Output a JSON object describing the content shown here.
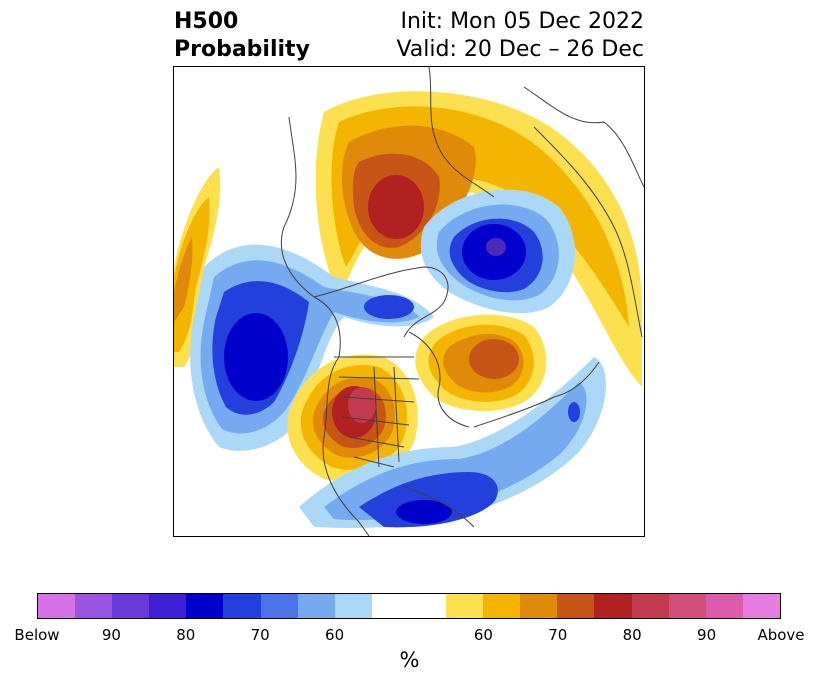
{
  "header": {
    "title_line1": "H500",
    "title_line2": "Probability",
    "init_text": "Init: Mon 05 Dec 2022",
    "valid_text": "Valid: 20 Dec – 26 Dec"
  },
  "colorbar": {
    "colors": [
      "#d672e6",
      "#9a55e0",
      "#6a3ad9",
      "#3e1fd4",
      "#0000cc",
      "#2440dc",
      "#4b72e6",
      "#75aaf0",
      "#acd8f8",
      "#ffffff",
      "#ffffff",
      "#fde050",
      "#f3b500",
      "#e08a0a",
      "#c75515",
      "#b12121",
      "#c13a4e",
      "#d04f7b",
      "#db5cab",
      "#e77de0"
    ],
    "tick_labels": [
      "Below",
      "90",
      "80",
      "70",
      "60",
      "60",
      "70",
      "80",
      "90",
      "Above"
    ],
    "unit_label": "%"
  },
  "map": {
    "blue_shades": [
      "#acd8f8",
      "#75aaf0",
      "#2440dc",
      "#0000cc"
    ],
    "warm_shades": [
      "#fde050",
      "#f3b500",
      "#e08a0a",
      "#c75515",
      "#b12121",
      "#c13a4e"
    ],
    "border_color": "#404040"
  }
}
